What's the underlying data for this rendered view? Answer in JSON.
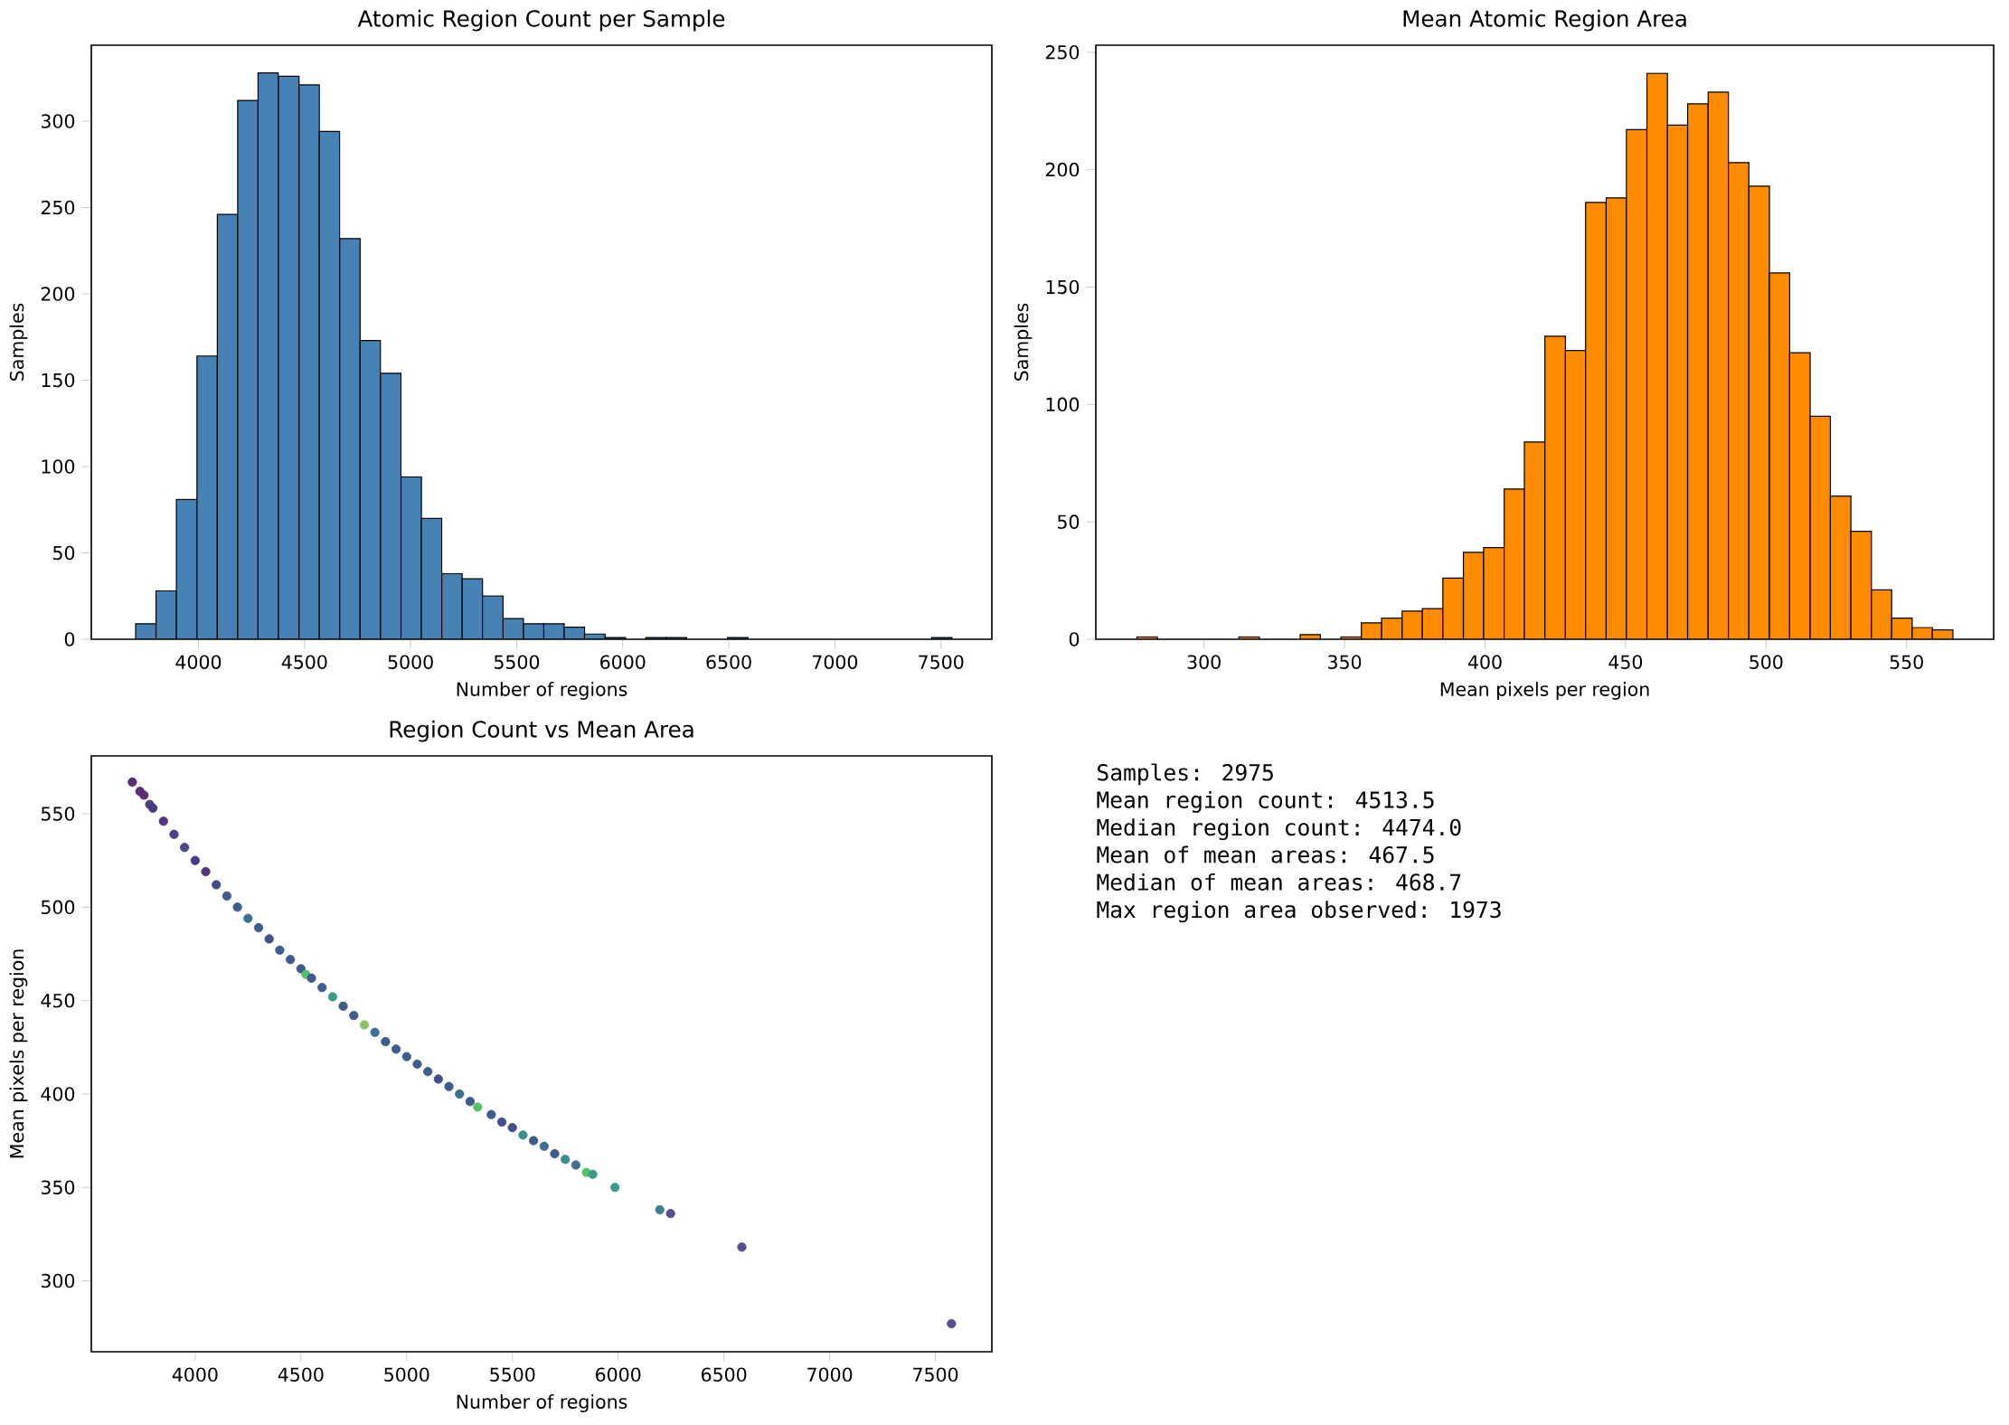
{
  "chart_data": [
    {
      "type": "histogram",
      "title": "Atomic Region Count per Sample",
      "xlabel": "Number of regions",
      "ylabel": "Samples",
      "color": "#4682b4",
      "bins": [
        3704,
        3800,
        3896,
        3993,
        4089,
        4185,
        4281,
        4377,
        4474,
        4570,
        4666,
        4762,
        4858,
        4955,
        5051,
        5147,
        5243,
        5339,
        5436,
        5532,
        5628,
        5724,
        5820,
        5917,
        6013,
        6109,
        6205,
        6301,
        6398,
        6494,
        6590,
        6686,
        6782,
        6879,
        6975,
        7071,
        7167,
        7263,
        7360,
        7456,
        7552
      ],
      "values": [
        9,
        28,
        81,
        164,
        246,
        312,
        328,
        326,
        321,
        294,
        232,
        173,
        154,
        94,
        70,
        38,
        35,
        25,
        12,
        9,
        9,
        7,
        3,
        1,
        0,
        1,
        1,
        0,
        0,
        1,
        0,
        0,
        0,
        0,
        0,
        0,
        0,
        0,
        0,
        1
      ],
      "xlim": [
        3495,
        7740
      ],
      "ylim": [
        0,
        344
      ],
      "xticks": [
        4000,
        4500,
        5000,
        5500,
        6000,
        6500,
        7000,
        7500
      ],
      "yticks": [
        0,
        50,
        100,
        150,
        200,
        250,
        300
      ]
    },
    {
      "type": "histogram",
      "title": "Mean Atomic Region Area",
      "xlabel": "Mean pixels per region",
      "ylabel": "Samples",
      "color": "#ff8c00",
      "bins": [
        276.1,
        283.4,
        290.6,
        297.9,
        305.1,
        312.4,
        319.7,
        326.9,
        334.2,
        341.4,
        348.7,
        356.0,
        363.2,
        370.5,
        377.7,
        385.0,
        392.3,
        399.5,
        406.8,
        414.0,
        421.3,
        428.6,
        435.8,
        443.1,
        450.3,
        457.6,
        464.9,
        472.1,
        479.4,
        486.6,
        493.9,
        501.2,
        508.4,
        515.7,
        522.9,
        530.2,
        537.5,
        544.7,
        552.0,
        559.2,
        566.5
      ],
      "values": [
        1,
        0,
        0,
        0,
        0,
        1,
        0,
        0,
        2,
        0,
        1,
        7,
        9,
        12,
        13,
        26,
        37,
        39,
        64,
        84,
        129,
        123,
        186,
        188,
        217,
        241,
        219,
        228,
        233,
        203,
        193,
        156,
        122,
        95,
        61,
        46,
        21,
        9,
        5,
        4
      ],
      "xlim": [
        261.5,
        581
      ],
      "ylim": [
        0,
        253
      ],
      "xticks": [
        300,
        350,
        400,
        450,
        500,
        550
      ],
      "yticks": [
        0,
        50,
        100,
        150,
        200,
        250
      ]
    },
    {
      "type": "scatter",
      "title": "Region Count vs Mean Area",
      "xlabel": "Number of regions",
      "ylabel": "Mean pixels per region",
      "x": [
        3703,
        3739,
        3758,
        3785,
        3800,
        3850,
        3900,
        3950,
        4000,
        4050,
        4100,
        4150,
        4200,
        4250,
        4300,
        4350,
        4400,
        4450,
        4500,
        4524,
        4550,
        4600,
        4650,
        4700,
        4750,
        4800,
        4850,
        4900,
        4950,
        5000,
        5050,
        5100,
        5150,
        5200,
        5250,
        5300,
        5336,
        5400,
        5450,
        5500,
        5550,
        5600,
        5650,
        5700,
        5750,
        5800,
        5850,
        5880,
        5985,
        6197,
        6248,
        6585,
        7576
      ],
      "values": [
        567,
        562,
        560,
        555,
        553,
        546,
        539,
        532,
        525,
        519,
        512,
        506,
        500,
        494,
        489,
        483,
        477,
        472,
        467,
        464,
        462,
        457,
        452,
        447,
        442,
        437,
        433,
        428,
        424,
        420,
        416,
        412,
        408,
        404,
        400,
        396,
        393,
        389,
        385,
        382,
        378,
        375,
        372,
        368,
        365,
        362,
        358,
        357,
        350,
        338,
        336,
        318,
        277
      ],
      "colors": [
        "#5b2f72",
        "#5b2f72",
        "#5b2f72",
        "#4f3f80",
        "#4a3a82",
        "#553580",
        "#4f3f82",
        "#4a4a88",
        "#4a3a82",
        "#553580",
        "#434f8a",
        "#3e5c8c",
        "#3e5c8c",
        "#3f6f92",
        "#3e5c8c",
        "#434f8a",
        "#3e5c8c",
        "#3e5c8c",
        "#3e5c8c",
        "#56c06c",
        "#3e5c8c",
        "#3e5c8c",
        "#3a9a8a",
        "#3e5c8c",
        "#3e5c8c",
        "#8ac36a",
        "#3f6f92",
        "#3e5c8c",
        "#3e5c8c",
        "#3e5c8c",
        "#3e5c8c",
        "#3e5c8c",
        "#434f8a",
        "#3e5c8c",
        "#3f6f92",
        "#3e5c8c",
        "#56c06c",
        "#3e5c8c",
        "#434f8a",
        "#434f8a",
        "#3a8f8c",
        "#3e5c8c",
        "#3f6f92",
        "#3e5c8c",
        "#3a8f8c",
        "#3f6f92",
        "#56c06c",
        "#3a9a8a",
        "#3a9a8a",
        "#3f7d93",
        "#5a4f8e",
        "#5a4f8e",
        "#5a4f8e"
      ],
      "xlim": [
        3509,
        7767
      ],
      "ylim": [
        262,
        581
      ],
      "xticks": [
        4000,
        4500,
        5000,
        5500,
        6000,
        6500,
        7000,
        7500
      ],
      "yticks": [
        300,
        350,
        400,
        450,
        500,
        550
      ]
    },
    {
      "type": "other",
      "annotations": [
        "Samples: 2975",
        "Mean region count: 4513.5",
        "Median region count: 4474.0",
        "Mean of mean areas: 467.5",
        "Median of mean areas: 468.7",
        "Max region area observed: 1973"
      ]
    }
  ]
}
